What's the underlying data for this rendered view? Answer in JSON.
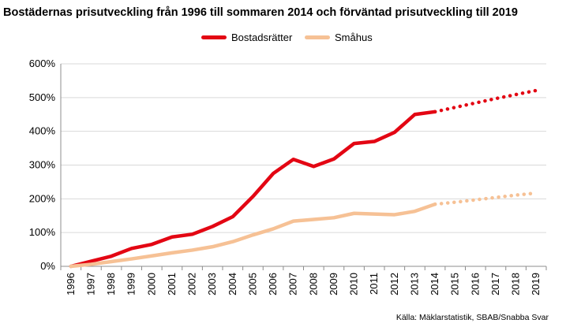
{
  "chart_data": {
    "type": "line",
    "title": "Bostädernas prisutveckling från 1996 till sommaren 2014 och förväntad prisutveckling till 2019",
    "source": "Källa: Mäklarstatistik, SBAB/Snabba Svar",
    "categories": [
      "1996",
      "1997",
      "1998",
      "1999",
      "2000",
      "2001",
      "2002",
      "2003",
      "2004",
      "2005",
      "2006",
      "2007",
      "2008",
      "2009",
      "2010",
      "2011",
      "2012",
      "2013",
      "2014",
      "2015",
      "2016",
      "2017",
      "2018",
      "2019"
    ],
    "ylim": [
      0,
      600
    ],
    "yticks": [
      "0%",
      "100%",
      "200%",
      "300%",
      "400%",
      "500%",
      "600%"
    ],
    "yticks_values": [
      0,
      100,
      200,
      300,
      400,
      500,
      600
    ],
    "grid": true,
    "legend_position": "top-center",
    "series": [
      {
        "name": "Bostadsrätter",
        "color": "#e30613",
        "values": [
          0,
          15,
          30,
          53,
          65,
          87,
          95,
          118,
          147,
          207,
          275,
          317,
          296,
          318,
          364,
          370,
          397,
          450,
          458,
          null,
          null,
          null,
          null,
          null
        ],
        "forecast": [
          null,
          null,
          null,
          null,
          null,
          null,
          null,
          null,
          null,
          null,
          null,
          null,
          null,
          null,
          null,
          null,
          null,
          null,
          458,
          471,
          484,
          497,
          509,
          521
        ]
      },
      {
        "name": "Småhus",
        "color": "#f6c195",
        "values": [
          0,
          6,
          14,
          22,
          31,
          40,
          48,
          58,
          73,
          93,
          111,
          134,
          139,
          144,
          157,
          155,
          153,
          163,
          184,
          null,
          null,
          null,
          null,
          null
        ],
        "forecast": [
          null,
          null,
          null,
          null,
          null,
          null,
          null,
          null,
          null,
          null,
          null,
          null,
          null,
          null,
          null,
          null,
          null,
          null,
          184,
          190,
          197,
          204,
          211,
          217
        ]
      }
    ]
  }
}
